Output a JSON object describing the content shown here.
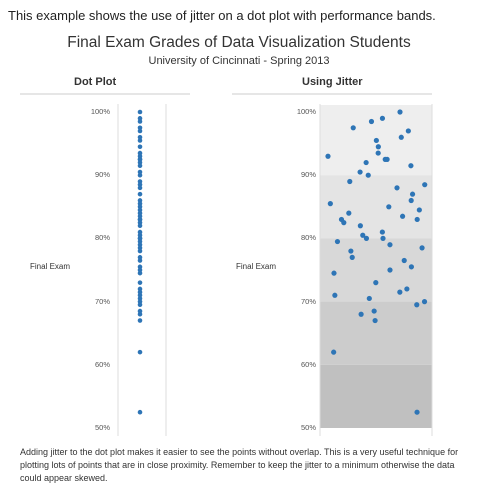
{
  "intro_text": "This example shows the use of jitter on a dot plot with performance bands.",
  "chart_data": {
    "type": "scatter",
    "title": "Final Exam Grades of Data Visualization Students",
    "subtitle": "University of Cincinnati - Spring 2013",
    "caption": "Adding jitter to the dot plot makes it easier to see the points without overlap. This is a very useful technique for plotting lots of points that are in close proximity. Remember to keep the jitter to a minimum otherwise the data could appear skewed.",
    "row_label": "Final Exam",
    "y_ticks": [
      "100%",
      "90%",
      "80%",
      "70%",
      "60%",
      "50%"
    ],
    "ylim": [
      50,
      100
    ],
    "panels": [
      {
        "title": "Dot Plot",
        "jitter": false
      },
      {
        "title": "Using Jitter",
        "jitter": true
      }
    ],
    "performance_bands": [
      {
        "from": 90,
        "to": 100,
        "color": "#eeeeee"
      },
      {
        "from": 80,
        "to": 90,
        "color": "#e4e4e4"
      },
      {
        "from": 70,
        "to": 80,
        "color": "#d8d8d8"
      },
      {
        "from": 60,
        "to": 70,
        "color": "#cccccc"
      },
      {
        "from": 50,
        "to": 60,
        "color": "#c0c0c0"
      }
    ],
    "point_color": "#2e75b6",
    "scores": [
      100,
      99,
      98.5,
      97.5,
      97,
      96,
      95.5,
      94.5,
      93.5,
      93,
      92.5,
      92.5,
      92,
      91.5,
      90.5,
      90,
      89,
      88.5,
      88,
      87,
      86,
      85.5,
      85,
      84.5,
      84,
      83.5,
      83,
      83,
      82.5,
      82,
      81,
      80.5,
      80,
      80,
      79.5,
      79,
      78.5,
      78,
      77,
      76.5,
      75.5,
      75,
      74.5,
      73,
      72,
      71.5,
      71,
      70.5,
      70,
      69.5,
      68.5,
      68,
      67,
      62,
      52.5
    ]
  }
}
